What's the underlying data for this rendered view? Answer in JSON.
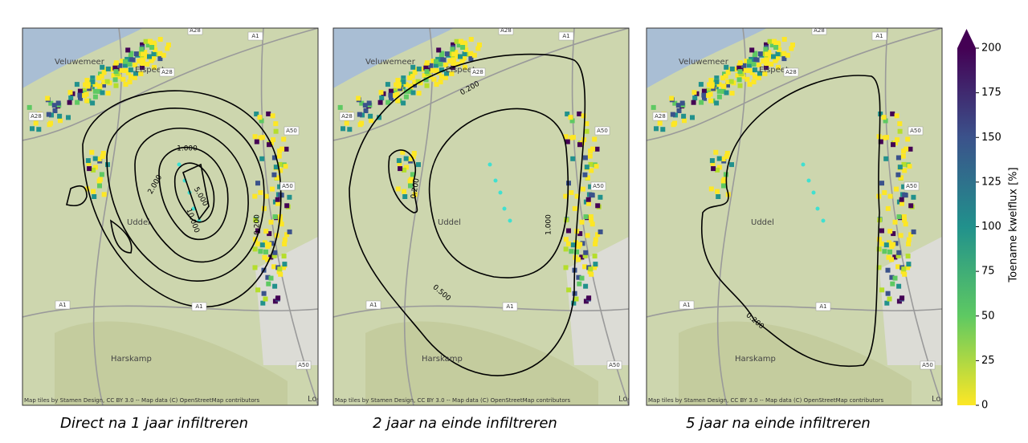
{
  "panels": [
    {
      "caption": "Direct na 1 jaar infiltreren",
      "contour_labels": [
        "1.000",
        "2.000",
        "5.000",
        "10.000",
        "0.200"
      ]
    },
    {
      "caption": "2 jaar na einde infiltreren",
      "contour_labels": [
        "0.200",
        "0.200",
        "1.000",
        "0.500"
      ]
    },
    {
      "caption": "5 jaar na einde infiltreren",
      "contour_labels": [
        "0.200"
      ]
    }
  ],
  "map_labels": {
    "places": [
      "Elspeet",
      "Uddel",
      "Harskamp",
      "Loe",
      "Veluwemeer"
    ],
    "roads": [
      "A28",
      "A1",
      "A50"
    ],
    "attribution": "Map tiles by Stamen Design, CC BY 3.0 -- Map data (C) OpenStreetMap contributors"
  },
  "colorbar": {
    "label": "Toename kwelflux [%]",
    "lim": [
      0,
      200
    ],
    "ticks": [
      0,
      25,
      50,
      75,
      100,
      125,
      150,
      175,
      200
    ],
    "colors": [
      "#fde725",
      "#5ec962",
      "#21918c",
      "#3b528b",
      "#440154"
    ],
    "extend": "max"
  }
}
